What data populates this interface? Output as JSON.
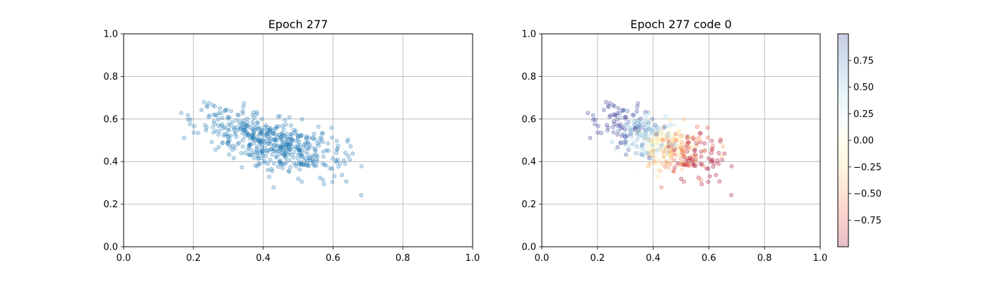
{
  "chart_data": [
    {
      "type": "scatter",
      "title": "Epoch 277",
      "xlabel": "",
      "ylabel": "",
      "xlim": [
        0,
        1
      ],
      "ylim": [
        0,
        1
      ],
      "xticks": [
        "0.0",
        "0.2",
        "0.4",
        "0.6",
        "0.8",
        "1.0"
      ],
      "yticks": [
        "0.0",
        "0.2",
        "0.4",
        "0.6",
        "0.8",
        "1.0"
      ],
      "grid": true,
      "point_color": "#1f77b4",
      "point_alpha": 0.25,
      "n_points": 500,
      "distribution": {
        "center": [
          0.43,
          0.49
        ],
        "principal_sd": 0.125,
        "minor_sd": 0.055,
        "angle_deg": -33,
        "x_range": [
          0.14,
          0.71
        ],
        "y_range": [
          0.19,
          0.74
        ]
      }
    },
    {
      "type": "scatter",
      "title": "Epoch 277 code 0",
      "xlabel": "",
      "ylabel": "",
      "xlim": [
        0,
        1
      ],
      "ylim": [
        0,
        1
      ],
      "xticks": [
        "0.0",
        "0.2",
        "0.4",
        "0.6",
        "0.8",
        "1.0"
      ],
      "yticks": [
        "0.0",
        "0.2",
        "0.4",
        "0.6",
        "0.8",
        "1.0"
      ],
      "grid": true,
      "point_alpha": 0.25,
      "colormap": "RdYlBu",
      "colorbar": {
        "range": [
          -1,
          1
        ],
        "ticks": [
          0.75,
          0.5,
          0.25,
          0.0,
          -0.25,
          -0.5,
          -0.75
        ],
        "tick_labels": [
          "0.75",
          "0.50",
          "0.25",
          "0.00",
          "−0.25",
          "−0.50",
          "−0.75"
        ],
        "colors": [
          "#a50026",
          "#d73027",
          "#f46d43",
          "#fdae61",
          "#fee090",
          "#ffffbf",
          "#e0f3f8",
          "#abd9e9",
          "#74add1",
          "#4575b4",
          "#313695"
        ],
        "alpha": 0.25
      },
      "color_trend": "negative (red) toward lower-right, positive (blue) toward upper-left"
    }
  ]
}
